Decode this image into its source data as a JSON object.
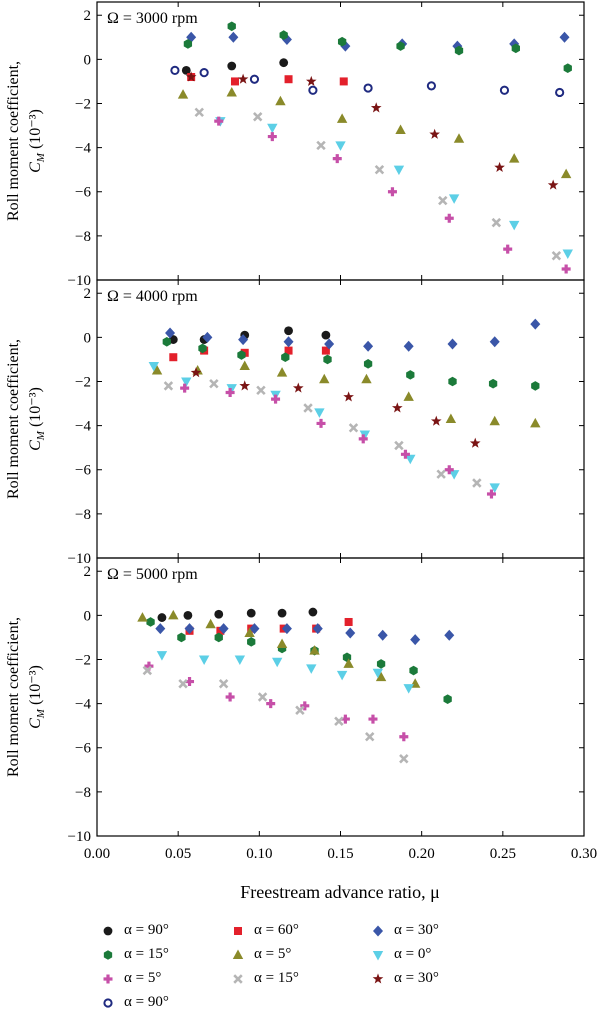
{
  "x_axis": {
    "label": "Freestream advance ratio, μ",
    "ticks": [
      "0.00",
      "0.05",
      "0.10",
      "0.15",
      "0.20",
      "0.25",
      "0.30"
    ],
    "range": [
      0.0,
      0.3
    ]
  },
  "y_axis": {
    "label_line1": "Roll moment coefficient,",
    "label_line2": "C",
    "label_sub": "M",
    "label_unit": " (10⁻³)",
    "ticks": [
      "2",
      "0",
      "−2",
      "−4",
      "−6",
      "−8",
      "−10"
    ],
    "range": [
      -10,
      2.6
    ]
  },
  "series_styles": [
    {
      "name": "α = 90°",
      "marker": "circle",
      "color": "#1a1a1a"
    },
    {
      "name": "α = 60°",
      "marker": "square",
      "color": "#e3202b"
    },
    {
      "name": "α = 30°",
      "marker": "diamond",
      "color": "#3a56a8"
    },
    {
      "name": "α = 15°",
      "marker": "hexagon",
      "color": "#1b7a3a"
    },
    {
      "name": "α = 5°",
      "marker": "triangle-up",
      "color": "#8a8a2a"
    },
    {
      "name": "α = 0°",
      "marker": "triangle-down",
      "color": "#5ccfe6"
    },
    {
      "name": "α = 5°",
      "marker": "plus",
      "color": "#c64fa8"
    },
    {
      "name": "α = 15°",
      "marker": "x",
      "color": "#b5b5b5"
    },
    {
      "name": "α = 30°",
      "marker": "star",
      "color": "#7a1414"
    },
    {
      "name": "α = 90°",
      "marker": "open-circle",
      "color": "#1f2a80"
    }
  ],
  "chart_data": [
    {
      "type": "scatter",
      "title": "Ω = 3000 rpm",
      "xlabel": "Freestream advance ratio, μ",
      "ylabel": "Roll moment coefficient, C_M (10⁻³)",
      "xlim": [
        0.0,
        0.3
      ],
      "ylim": [
        -10,
        2.6
      ],
      "legend": "bottom",
      "series": [
        {
          "name": "α = 90°",
          "x": [
            0.055,
            0.083,
            0.115
          ],
          "y": [
            -0.5,
            -0.3,
            -0.15
          ]
        },
        {
          "name": "α = 60°",
          "x": [
            0.058,
            0.085,
            0.118,
            0.152
          ],
          "y": [
            -0.8,
            -1.0,
            -0.9,
            -1.0
          ]
        },
        {
          "name": "α = 30°",
          "x": [
            0.058,
            0.084,
            0.117,
            0.153,
            0.188,
            0.222,
            0.257,
            0.288
          ],
          "y": [
            1.0,
            1.0,
            0.9,
            0.6,
            0.7,
            0.6,
            0.7,
            1.0
          ]
        },
        {
          "name": "α = 15°",
          "x": [
            0.056,
            0.083,
            0.115,
            0.151,
            0.187,
            0.223,
            0.258,
            0.29
          ],
          "y": [
            0.7,
            1.5,
            1.1,
            0.8,
            0.6,
            0.4,
            0.5,
            -0.4
          ]
        },
        {
          "name": "α = 5°",
          "x": [
            0.053,
            0.083,
            0.113,
            0.151,
            0.187,
            0.223,
            0.257,
            0.289
          ],
          "y": [
            -1.6,
            -1.5,
            -1.9,
            -2.7,
            -3.2,
            -3.6,
            -4.5,
            -5.2
          ]
        },
        {
          "name": "α = 0°",
          "x": [
            0.076,
            0.108,
            0.15,
            0.186,
            0.22,
            0.257,
            0.29
          ],
          "y": [
            -2.8,
            -3.1,
            -3.9,
            -5.0,
            -6.3,
            -7.5,
            -8.8
          ]
        },
        {
          "name": "α = 5°",
          "x": [
            0.075,
            0.108,
            0.148,
            0.182,
            0.217,
            0.253,
            0.289
          ],
          "y": [
            -2.8,
            -3.5,
            -4.5,
            -6.0,
            -7.2,
            -8.6,
            -9.5
          ]
        },
        {
          "name": "α = 15°",
          "x": [
            0.063,
            0.099,
            0.138,
            0.174,
            0.213,
            0.246,
            0.283
          ],
          "y": [
            -2.4,
            -2.6,
            -3.9,
            -5.0,
            -6.4,
            -7.4,
            -8.9
          ]
        },
        {
          "name": "α = 30°",
          "x": [
            0.058,
            0.09,
            0.132,
            0.172,
            0.208,
            0.248,
            0.281
          ],
          "y": [
            -0.8,
            -0.9,
            -1.0,
            -2.2,
            -3.4,
            -4.9,
            -5.7
          ]
        },
        {
          "name": "α = 90°",
          "x": [
            0.048,
            0.066,
            0.097,
            0.133,
            0.167,
            0.206,
            0.251,
            0.285
          ],
          "y": [
            -0.5,
            -0.6,
            -0.9,
            -1.4,
            -1.3,
            -1.2,
            -1.4,
            -1.5
          ]
        }
      ]
    },
    {
      "type": "scatter",
      "title": "Ω = 4000 rpm",
      "xlabel": "Freestream advance ratio, μ",
      "ylabel": "Roll moment coefficient, C_M (10⁻³)",
      "xlim": [
        0.0,
        0.3
      ],
      "ylim": [
        -10,
        2.6
      ],
      "legend": "bottom",
      "series": [
        {
          "name": "α = 90°",
          "x": [
            0.047,
            0.066,
            0.091,
            0.118,
            0.141
          ],
          "y": [
            -0.1,
            -0.1,
            0.1,
            0.3,
            0.1
          ]
        },
        {
          "name": "α = 60°",
          "x": [
            0.047,
            0.066,
            0.091,
            0.118,
            0.141
          ],
          "y": [
            -0.9,
            -0.6,
            -0.7,
            -0.6,
            -0.6
          ]
        },
        {
          "name": "α = 30°",
          "x": [
            0.045,
            0.068,
            0.09,
            0.118,
            0.143,
            0.167,
            0.192,
            0.219,
            0.245,
            0.27
          ],
          "y": [
            0.2,
            0.0,
            -0.1,
            -0.2,
            -0.3,
            -0.4,
            -0.4,
            -0.3,
            -0.2,
            0.6
          ]
        },
        {
          "name": "α = 15°",
          "x": [
            0.043,
            0.065,
            0.089,
            0.116,
            0.142,
            0.167,
            0.193,
            0.219,
            0.244,
            0.27
          ],
          "y": [
            -0.2,
            -0.5,
            -0.8,
            -0.9,
            -1.0,
            -1.2,
            -1.7,
            -2.0,
            -2.1,
            -2.2
          ]
        },
        {
          "name": "α = 5°",
          "x": [
            0.037,
            0.062,
            0.091,
            0.114,
            0.14,
            0.166,
            0.192,
            0.218,
            0.245,
            0.27
          ],
          "y": [
            -1.5,
            -1.5,
            -1.3,
            -1.6,
            -1.9,
            -1.9,
            -2.7,
            -3.7,
            -3.8,
            -3.9
          ]
        },
        {
          "name": "α = 0°",
          "x": [
            0.035,
            0.055,
            0.083,
            0.11,
            0.137,
            0.165,
            0.193,
            0.22,
            0.245
          ],
          "y": [
            -1.3,
            -2.0,
            -2.3,
            -2.6,
            -3.4,
            -4.4,
            -5.5,
            -6.2,
            -6.8
          ]
        },
        {
          "name": "α = 5°",
          "x": [
            0.054,
            0.082,
            0.11,
            0.138,
            0.164,
            0.19,
            0.217,
            0.243
          ],
          "y": [
            -2.3,
            -2.5,
            -2.8,
            -3.9,
            -4.6,
            -5.3,
            -6.0,
            -7.1
          ]
        },
        {
          "name": "α = 15°",
          "x": [
            0.044,
            0.072,
            0.101,
            0.13,
            0.158,
            0.186,
            0.212,
            0.234
          ],
          "y": [
            -2.2,
            -2.1,
            -2.4,
            -3.2,
            -4.1,
            -4.9,
            -6.2,
            -6.6
          ]
        },
        {
          "name": "α = 30°",
          "x": [
            0.061,
            0.091,
            0.124,
            0.155,
            0.185,
            0.209,
            0.233
          ],
          "y": [
            -1.6,
            -2.2,
            -2.3,
            -2.7,
            -3.2,
            -3.8,
            -4.8
          ]
        }
      ]
    },
    {
      "type": "scatter",
      "title": "Ω = 5000 rpm",
      "xlabel": "Freestream advance ratio, μ",
      "ylabel": "Roll moment coefficient, C_M (10⁻³)",
      "xlim": [
        0.0,
        0.3
      ],
      "ylim": [
        -10,
        2.6
      ],
      "legend": "bottom",
      "series": [
        {
          "name": "α = 90°",
          "x": [
            0.04,
            0.056,
            0.075,
            0.095,
            0.114,
            0.133
          ],
          "y": [
            -0.1,
            0.0,
            0.05,
            0.1,
            0.1,
            0.15
          ]
        },
        {
          "name": "α = 60°",
          "x": [
            0.057,
            0.076,
            0.095,
            0.115,
            0.135,
            0.155
          ],
          "y": [
            -0.7,
            -0.7,
            -0.6,
            -0.6,
            -0.6,
            -0.3
          ]
        },
        {
          "name": "α = 30°",
          "x": [
            0.039,
            0.057,
            0.078,
            0.097,
            0.117,
            0.136,
            0.156,
            0.176,
            0.196,
            0.217
          ],
          "y": [
            -0.6,
            -0.6,
            -0.6,
            -0.6,
            -0.6,
            -0.6,
            -0.8,
            -0.9,
            -1.1,
            -0.9
          ]
        },
        {
          "name": "α = 15°",
          "x": [
            0.033,
            0.052,
            0.075,
            0.095,
            0.114,
            0.134,
            0.154,
            0.175,
            0.195,
            0.216
          ],
          "y": [
            -0.3,
            -1.0,
            -1.0,
            -1.2,
            -1.5,
            -1.6,
            -1.9,
            -2.2,
            -2.5,
            -3.8
          ]
        },
        {
          "name": "α = 5°",
          "x": [
            0.028,
            0.047,
            0.07,
            0.094,
            0.114,
            0.134,
            0.155,
            0.175,
            0.196
          ],
          "y": [
            -0.1,
            0.0,
            -0.4,
            -0.8,
            -1.3,
            -1.6,
            -2.2,
            -2.8,
            -3.1
          ]
        },
        {
          "name": "α = 0°",
          "x": [
            0.04,
            0.066,
            0.088,
            0.111,
            0.132,
            0.151,
            0.173,
            0.192
          ],
          "y": [
            -1.8,
            -2.0,
            -2.0,
            -2.1,
            -2.4,
            -2.7,
            -2.6,
            -3.3
          ]
        },
        {
          "name": "α = 5°",
          "x": [
            0.032,
            0.057,
            0.082,
            0.107,
            0.128,
            0.153,
            0.17,
            0.189
          ],
          "y": [
            -2.3,
            -3.0,
            -3.7,
            -4.0,
            -4.1,
            -4.7,
            -4.7,
            -5.5
          ]
        },
        {
          "name": "α = 15°",
          "x": [
            0.031,
            0.053,
            0.078,
            0.102,
            0.125,
            0.149,
            0.168,
            0.189
          ],
          "y": [
            -2.5,
            -3.1,
            -3.1,
            -3.7,
            -4.3,
            -4.8,
            -5.5,
            -6.5
          ]
        }
      ]
    }
  ]
}
